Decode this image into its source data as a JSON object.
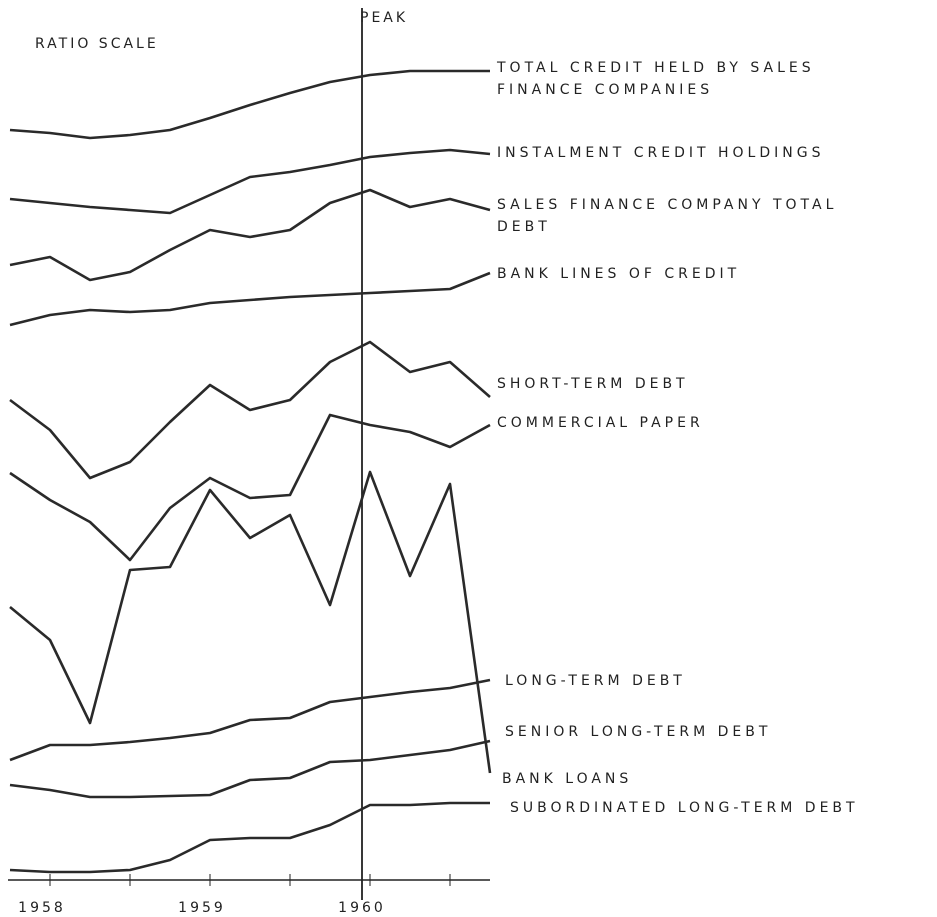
{
  "chart_data": {
    "type": "line",
    "note": "RATIO SCALE",
    "x": [
      1957.75,
      1958,
      1958.25,
      1958.5,
      1958.75,
      1959,
      1959.25,
      1959.5,
      1959.75,
      1960,
      1960.25,
      1960.5,
      1960.75
    ],
    "xlim": [
      1957.75,
      1960.75
    ],
    "xticks": [
      1958,
      1959,
      1960
    ],
    "xminorticks": [
      1958.5,
      1959.5,
      1960.5
    ],
    "ylim": [
      0,
      88
    ],
    "annotations": [
      {
        "x": 1959.95,
        "label": "PEAK"
      }
    ],
    "series": [
      {
        "name": "TOTAL CREDIT HELD BY SALES FINANCE COMPANIES",
        "color": "#2a2a2a",
        "values": [
          75.0,
          74.7,
          74.2,
          74.5,
          75.0,
          76.2,
          77.5,
          78.7,
          79.8,
          80.5,
          80.9,
          80.9,
          80.9
        ]
      },
      {
        "name": "INSTALMENT CREDIT HOLDINGS",
        "color": "#2a2a2a",
        "values": [
          68.1,
          67.7,
          67.3,
          67.0,
          66.7,
          68.5,
          70.3,
          70.8,
          71.5,
          72.3,
          72.7,
          73.0,
          72.6
        ]
      },
      {
        "name": "SALES FINANCE COMPANY TOTAL DEBT",
        "color": "#2a2a2a",
        "values": [
          61.5,
          62.3,
          60.0,
          60.8,
          63.0,
          65.0,
          64.3,
          65.0,
          67.7,
          69.0,
          67.3,
          68.1,
          67.0
        ]
      },
      {
        "name": "BANK LINES OF CREDIT",
        "color": "#2a2a2a",
        "values": [
          55.5,
          56.5,
          57.0,
          56.8,
          57.0,
          57.7,
          58.0,
          58.3,
          58.5,
          58.7,
          58.9,
          59.1,
          60.7
        ]
      },
      {
        "name": "SHORT-TERM DEBT",
        "color": "#2a2a2a",
        "values": [
          48.0,
          45.0,
          40.2,
          41.8,
          45.8,
          49.5,
          47.0,
          48.0,
          51.8,
          53.8,
          50.8,
          51.8,
          48.3
        ]
      },
      {
        "name": "COMMERCIAL PAPER",
        "color": "#2a2a2a",
        "values": [
          40.7,
          38.0,
          35.8,
          32.0,
          37.2,
          40.2,
          38.2,
          38.5,
          46.5,
          45.5,
          44.8,
          43.3,
          45.5
        ]
      },
      {
        "name": "BANK LOANS",
        "color": "#2a2a2a",
        "values": [
          27.3,
          24.0,
          15.7,
          31.0,
          31.3,
          39.0,
          34.2,
          36.5,
          27.5,
          40.8,
          30.4,
          39.6,
          10.7
        ]
      },
      {
        "name": "LONG-TERM DEBT",
        "color": "#2a2a2a",
        "values": [
          12.0,
          13.5,
          13.5,
          13.8,
          14.2,
          14.7,
          16.0,
          16.2,
          17.8,
          18.3,
          18.8,
          19.2,
          20.0
        ]
      },
      {
        "name": "SENIOR LONG-TERM DEBT",
        "color": "#2a2a2a",
        "values": [
          9.5,
          9.0,
          8.3,
          8.3,
          8.4,
          8.5,
          10.0,
          10.2,
          11.8,
          12.0,
          12.5,
          13.0,
          13.9
        ]
      },
      {
        "name": "SUBORDINATED LONG-TERM DEBT",
        "color": "#2a2a2a",
        "values": [
          1.0,
          0.8,
          0.8,
          1.0,
          2.0,
          4.0,
          4.2,
          4.2,
          5.5,
          7.5,
          7.5,
          7.7,
          7.7
        ]
      }
    ]
  }
}
